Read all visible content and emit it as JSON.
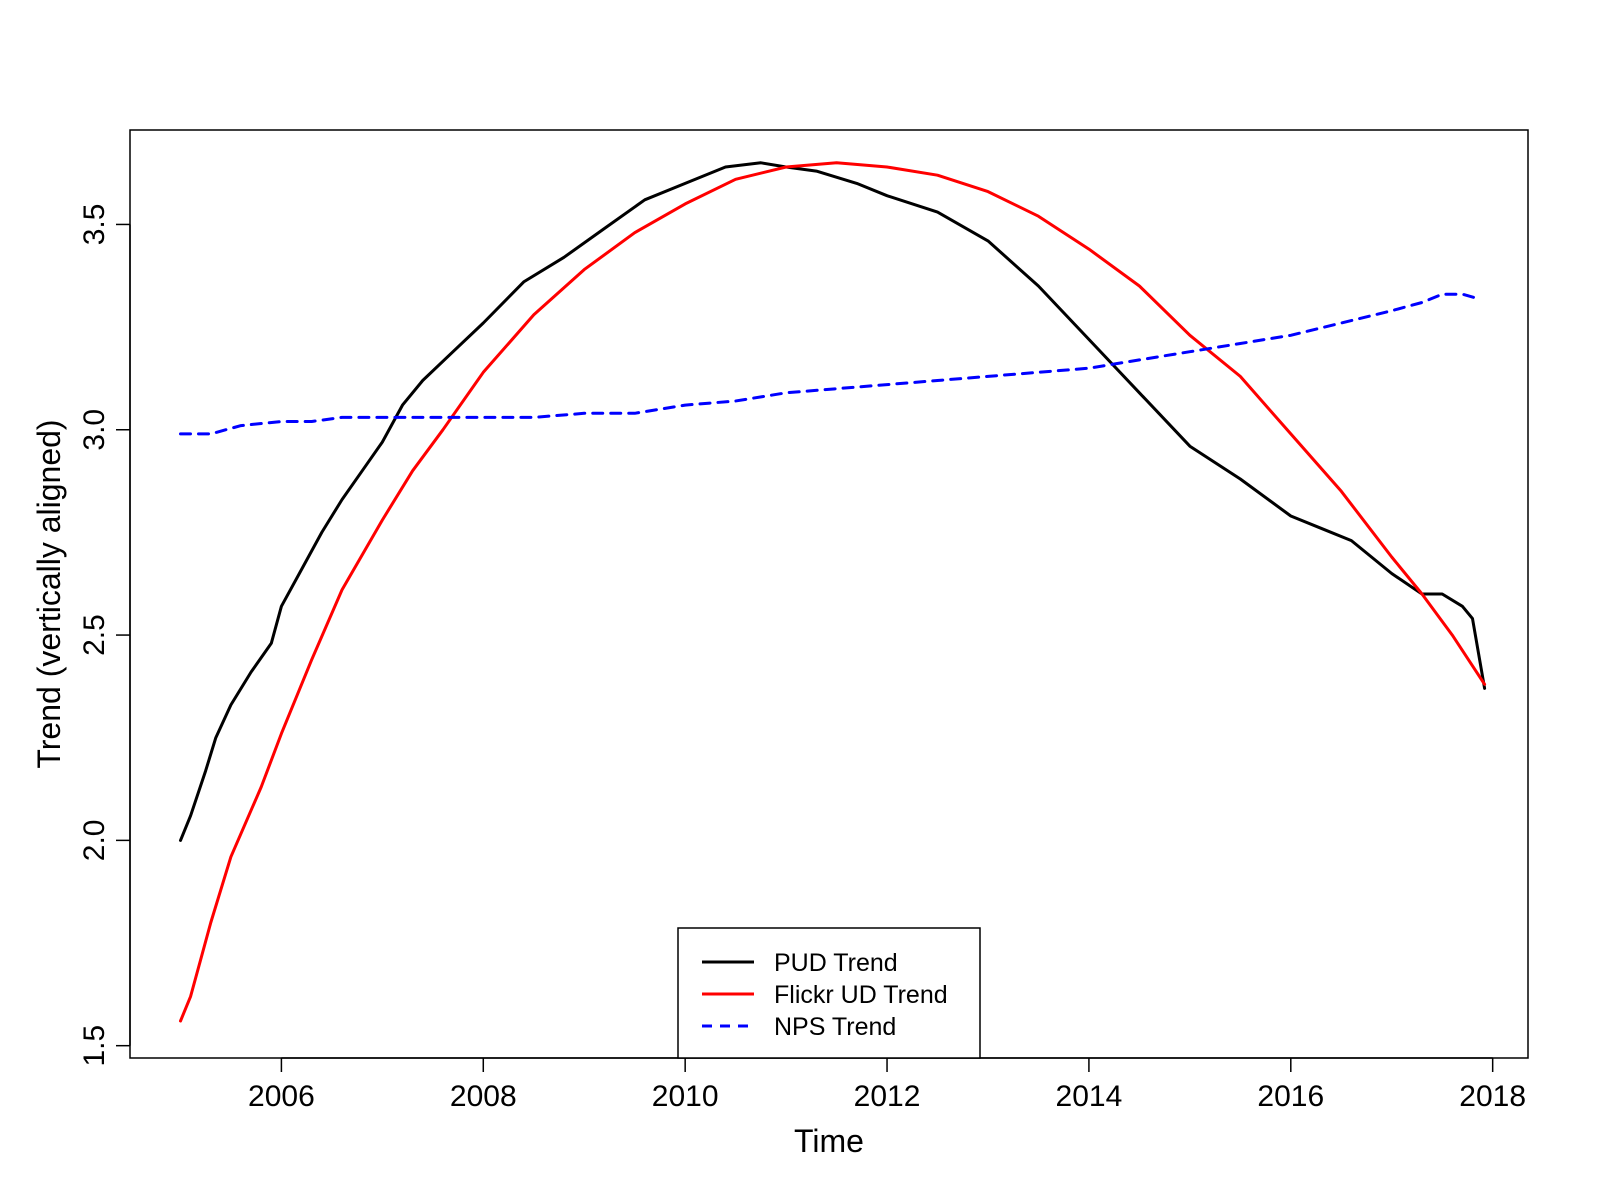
{
  "chart_data": {
    "type": "line",
    "title": "",
    "xlabel": "Time",
    "ylabel": "Trend (vertically aligned)",
    "xlim": [
      2004.5,
      2018.35
    ],
    "ylim": [
      1.47,
      3.73
    ],
    "xticks": [
      2006,
      2008,
      2010,
      2012,
      2014,
      2016,
      2018
    ],
    "xtick_labels": [
      "2006",
      "2008",
      "2010",
      "2012",
      "2014",
      "2016",
      "2018"
    ],
    "yticks": [
      1.5,
      2.0,
      2.5,
      3.0,
      3.5
    ],
    "ytick_labels": [
      "1.5",
      "2.0",
      "2.5",
      "3.0",
      "3.5"
    ],
    "grid": false,
    "legend_position": "bottom-center",
    "series": [
      {
        "name": "PUD Trend",
        "color": "#000000",
        "dash": "solid",
        "x": [
          2005.0,
          2005.1,
          2005.25,
          2005.35,
          2005.5,
          2005.7,
          2005.9,
          2006.0,
          2006.2,
          2006.4,
          2006.6,
          2006.8,
          2007.0,
          2007.2,
          2007.4,
          2007.7,
          2008.0,
          2008.4,
          2008.8,
          2009.2,
          2009.6,
          2010.0,
          2010.4,
          2010.75,
          2011.0,
          2011.3,
          2011.7,
          2012.0,
          2012.5,
          2013.0,
          2013.5,
          2014.0,
          2014.5,
          2015.0,
          2015.5,
          2016.0,
          2016.3,
          2016.6,
          2017.0,
          2017.3,
          2017.5,
          2017.7,
          2017.8,
          2017.92
        ],
        "y": [
          2.0,
          2.06,
          2.17,
          2.25,
          2.33,
          2.41,
          2.48,
          2.57,
          2.66,
          2.75,
          2.83,
          2.9,
          2.97,
          3.06,
          3.12,
          3.19,
          3.26,
          3.36,
          3.42,
          3.49,
          3.56,
          3.6,
          3.64,
          3.65,
          3.64,
          3.63,
          3.6,
          3.57,
          3.53,
          3.46,
          3.35,
          3.22,
          3.09,
          2.96,
          2.88,
          2.79,
          2.76,
          2.73,
          2.65,
          2.6,
          2.6,
          2.57,
          2.54,
          2.37
        ]
      },
      {
        "name": "Flickr UD Trend",
        "color": "#ff0000",
        "dash": "solid",
        "x": [
          2005.0,
          2005.1,
          2005.2,
          2005.3,
          2005.5,
          2005.8,
          2006.0,
          2006.3,
          2006.6,
          2007.0,
          2007.3,
          2007.6,
          2008.0,
          2008.5,
          2009.0,
          2009.5,
          2010.0,
          2010.5,
          2011.0,
          2011.5,
          2012.0,
          2012.5,
          2013.0,
          2013.5,
          2014.0,
          2014.5,
          2015.0,
          2015.5,
          2016.0,
          2016.5,
          2017.0,
          2017.3,
          2017.6,
          2017.92
        ],
        "y": [
          1.56,
          1.62,
          1.71,
          1.8,
          1.96,
          2.13,
          2.26,
          2.44,
          2.61,
          2.78,
          2.9,
          3.0,
          3.14,
          3.28,
          3.39,
          3.48,
          3.55,
          3.61,
          3.64,
          3.65,
          3.64,
          3.62,
          3.58,
          3.52,
          3.44,
          3.35,
          3.23,
          3.13,
          2.99,
          2.85,
          2.69,
          2.6,
          2.5,
          2.38
        ]
      },
      {
        "name": "NPS Trend",
        "color": "#0000ff",
        "dash": "dashed",
        "x": [
          2005.0,
          2005.3,
          2005.6,
          2006.0,
          2006.3,
          2006.6,
          2007.0,
          2007.5,
          2008.0,
          2008.5,
          2009.0,
          2009.5,
          2010.0,
          2010.5,
          2011.0,
          2011.5,
          2012.0,
          2012.5,
          2013.0,
          2013.5,
          2014.0,
          2014.5,
          2015.0,
          2015.5,
          2016.0,
          2016.5,
          2017.0,
          2017.3,
          2017.5,
          2017.7,
          2017.85
        ],
        "y": [
          2.99,
          2.99,
          3.01,
          3.02,
          3.02,
          3.03,
          3.03,
          3.03,
          3.03,
          3.03,
          3.04,
          3.04,
          3.06,
          3.07,
          3.09,
          3.1,
          3.11,
          3.12,
          3.13,
          3.14,
          3.15,
          3.17,
          3.19,
          3.21,
          3.23,
          3.26,
          3.29,
          3.31,
          3.33,
          3.33,
          3.32
        ]
      }
    ]
  }
}
